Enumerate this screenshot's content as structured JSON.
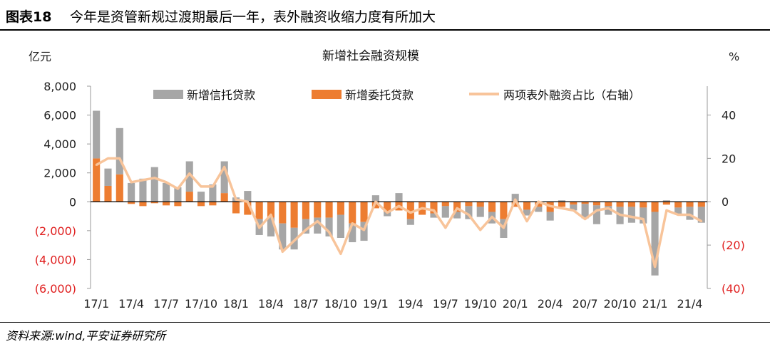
{
  "header": {
    "figure_no": "图表18",
    "title": "今年是资管新规过渡期最后一年，表外融资收缩力度有所加大"
  },
  "source_note": "资料来源:wind,平安证券研究所",
  "colors": {
    "trust": "#a6a6a6",
    "entrusted": "#ed7d31",
    "ratio": "#f8c49a",
    "neg_tick": "#e02020"
  },
  "chart_data": {
    "type": "bar",
    "stacked": true,
    "title": "新增社会融资规模",
    "ylabel": "亿元",
    "ylabel_right": "%",
    "ylim": [
      -6000,
      8000
    ],
    "ylim_right": [
      -40,
      53.3
    ],
    "y_ticks": [
      8000,
      6000,
      4000,
      2000,
      0,
      -2000,
      -4000,
      -6000
    ],
    "y_tick_labels": [
      "8,000",
      "6,000",
      "4,000",
      "2,000",
      "0",
      "(2,000)",
      "(4,000)",
      "(6,000)"
    ],
    "y_right_ticks": [
      40,
      20,
      0,
      -20,
      -40
    ],
    "y_right_tick_labels": [
      "40",
      "20",
      "0",
      "(20)",
      "(40)"
    ],
    "x_tick_labels": [
      "17/1",
      "17/4",
      "17/7",
      "17/10",
      "18/1",
      "18/4",
      "18/7",
      "18/10",
      "19/1",
      "19/4",
      "19/7",
      "19/10",
      "20/1",
      "20/4",
      "20/7",
      "20/10",
      "21/1",
      "21/4"
    ],
    "x_tick_every": 3,
    "legend": [
      "新增信托贷款",
      "新增委托贷款",
      "两项表外融资占比（右轴）"
    ],
    "categories": [
      "17/1",
      "17/2",
      "17/3",
      "17/4",
      "17/5",
      "17/6",
      "17/7",
      "17/8",
      "17/9",
      "17/10",
      "17/11",
      "17/12",
      "18/1",
      "18/2",
      "18/3",
      "18/4",
      "18/5",
      "18/6",
      "18/7",
      "18/8",
      "18/9",
      "18/10",
      "18/11",
      "18/12",
      "19/1",
      "19/2",
      "19/3",
      "19/4",
      "19/5",
      "19/6",
      "19/7",
      "19/8",
      "19/9",
      "19/10",
      "19/11",
      "19/12",
      "20/1",
      "20/2",
      "20/3",
      "20/4",
      "20/5",
      "20/6",
      "20/7",
      "20/8",
      "20/9",
      "20/10",
      "20/11",
      "20/12",
      "21/1",
      "21/2",
      "21/3",
      "21/4",
      "21/5"
    ],
    "series": [
      {
        "name": "新增信托贷款",
        "kind": "bar",
        "values": [
          3300,
          1200,
          3200,
          1300,
          1600,
          2400,
          1300,
          1000,
          2100,
          700,
          1200,
          2200,
          300,
          750,
          -1100,
          -1300,
          -1800,
          -1500,
          -1000,
          -1100,
          -1300,
          -1600,
          -1300,
          -1300,
          450,
          -300,
          600,
          -400,
          0,
          -300,
          -800,
          -450,
          -900,
          -700,
          -800,
          -1300,
          550,
          -400,
          -350,
          -600,
          100,
          -400,
          -1000,
          -1300,
          -600,
          -1200,
          -1100,
          -1100,
          -4400,
          100,
          -500,
          -900,
          -1100
        ]
      },
      {
        "name": "新增委托贷款",
        "kind": "bar",
        "values": [
          3000,
          1100,
          1900,
          -150,
          -300,
          -100,
          -250,
          -300,
          700,
          -300,
          -250,
          600,
          -800,
          -900,
          -1200,
          -1100,
          -1500,
          -1800,
          -1200,
          -1100,
          -1100,
          -900,
          -1500,
          -1400,
          -450,
          -700,
          -600,
          -1200,
          -900,
          -800,
          -300,
          -700,
          -300,
          -350,
          -700,
          -1200,
          -350,
          -550,
          -350,
          -700,
          -350,
          -200,
          -150,
          -250,
          -300,
          -350,
          -350,
          -400,
          -700,
          -200,
          -400,
          -350,
          -350
        ]
      },
      {
        "name": "两项表外融资占比（右轴）",
        "kind": "line",
        "axis": "right",
        "values": [
          17,
          20,
          20,
          9,
          10,
          11,
          9,
          6,
          13,
          7,
          7,
          16,
          1,
          0,
          -12,
          -6,
          -23,
          -18,
          -13,
          -9,
          -14,
          -24,
          -10,
          -13,
          0,
          -5,
          -2,
          -5,
          -3,
          -4,
          -12,
          -3,
          -6,
          -13,
          -7,
          -12,
          1,
          -9,
          0,
          -2,
          -3,
          -4,
          -8,
          -4,
          -3,
          -6,
          -7,
          -8,
          -30,
          -4,
          -6,
          -6,
          -9
        ]
      }
    ]
  }
}
